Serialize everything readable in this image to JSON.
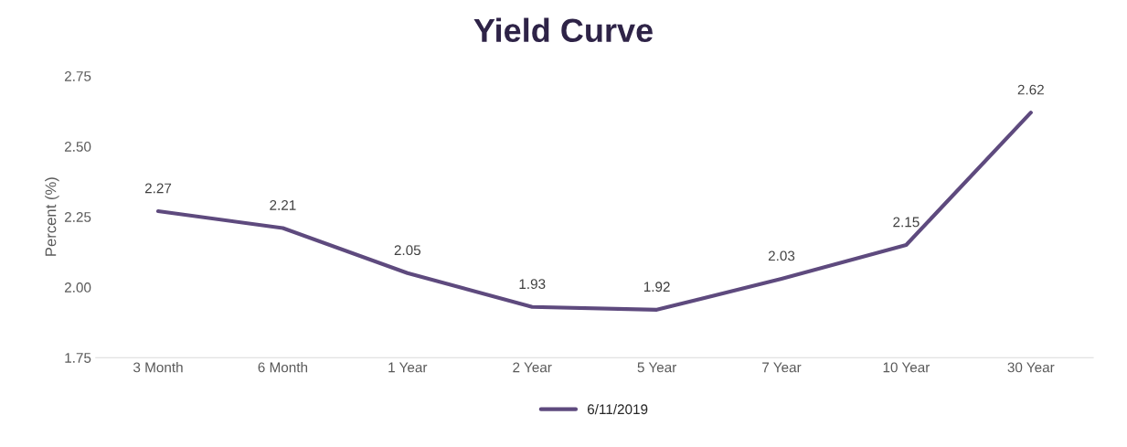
{
  "chart_data": {
    "type": "line",
    "title": "Yield Curve",
    "ylabel": "Percent (%)",
    "categories": [
      "3 Month",
      "6 Month",
      "1 Year",
      "2 Year",
      "5 Year",
      "7 Year",
      "10 Year",
      "30 Year"
    ],
    "series": [
      {
        "name": "6/11/2019",
        "color": "#5e4a7e",
        "values": [
          2.27,
          2.21,
          2.05,
          1.93,
          1.92,
          2.03,
          2.15,
          2.62
        ]
      }
    ],
    "ylim": [
      1.75,
      2.75
    ],
    "yticks": [
      {
        "value": 1.75,
        "label": "1.75"
      },
      {
        "value": 2.0,
        "label": "2.00"
      },
      {
        "value": 2.25,
        "label": "2.25"
      },
      {
        "value": 2.5,
        "label": "2.50"
      },
      {
        "value": 2.75,
        "label": "2.75"
      }
    ],
    "data_labels": true,
    "grid": false,
    "legend": "bottom",
    "marker": "none",
    "line_style": "solid"
  }
}
